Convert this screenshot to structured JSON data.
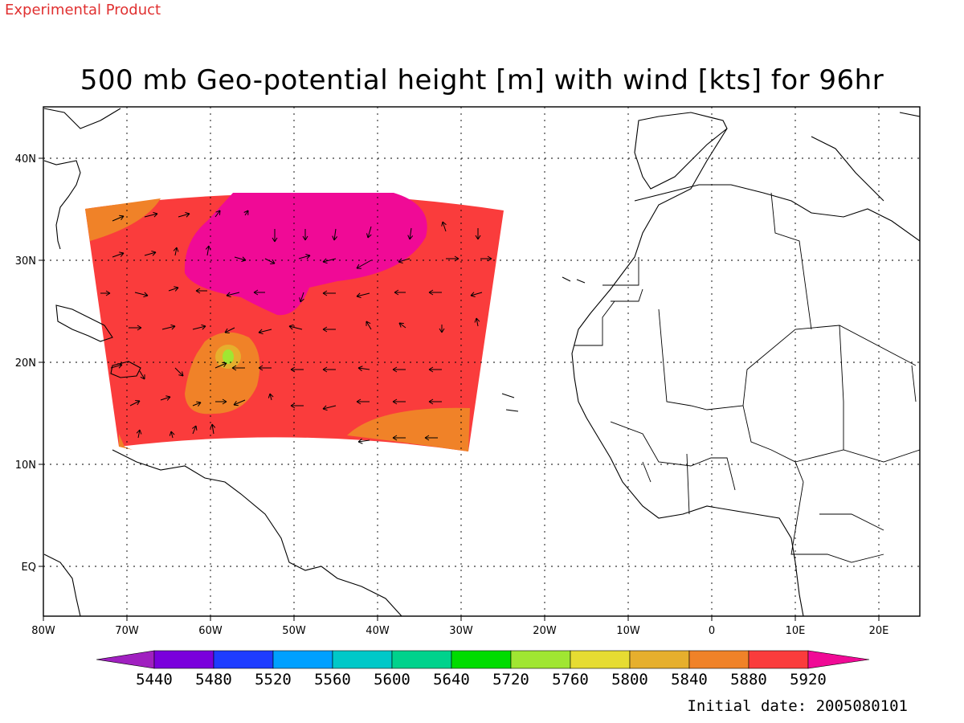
{
  "experimental_tag": "Experimental Product",
  "title": "500 mb Geo-potential height [m] with wind [kts] for 96hr",
  "initial_date": "Initial date: 2005080101",
  "lat_labels": [
    "40N",
    "30N",
    "20N",
    "10N",
    "EQ"
  ],
  "lon_labels": [
    "80W",
    "70W",
    "60W",
    "50W",
    "40W",
    "30W",
    "20W",
    "10W",
    "0",
    "10E",
    "20E"
  ],
  "colorbar": {
    "labels": [
      "5440",
      "5480",
      "5520",
      "5560",
      "5600",
      "5640",
      "5720",
      "5760",
      "5800",
      "5840",
      "5880",
      "5920"
    ],
    "colors": [
      "#a020c0",
      "#7a00dc",
      "#1e3cff",
      "#00a0ff",
      "#00c8c8",
      "#00d28c",
      "#00dc00",
      "#a0e632",
      "#e6dc32",
      "#e6af2d",
      "#f08228",
      "#fa3c3c",
      "#f00a96"
    ]
  },
  "colors": {
    "field_base": "#fa3c3c",
    "field_high": "#f00a96",
    "field_low_ring": "#f08228",
    "field_low_mid": "#e6af2d",
    "field_low_core": "#a0e632"
  }
}
